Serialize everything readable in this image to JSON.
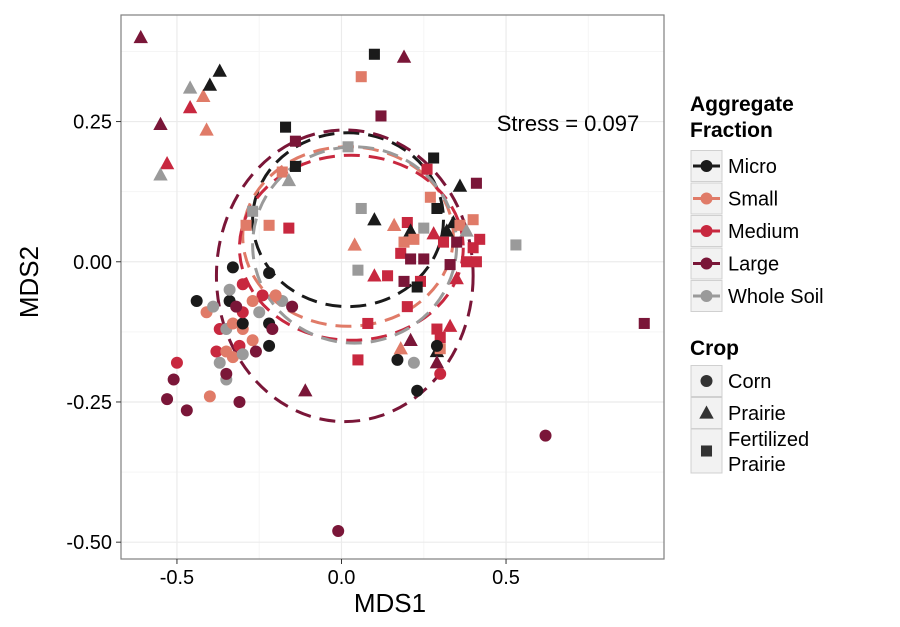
{
  "chart_data": {
    "type": "scatter",
    "xlabel": "MDS1",
    "ylabel": "MDS2",
    "xlim": [
      -0.67,
      0.98
    ],
    "ylim": [
      -0.53,
      0.44
    ],
    "x_ticks": [
      "-0.5",
      "0.0",
      "0.5"
    ],
    "y_ticks": [
      "0.25",
      "0.00",
      "-0.25",
      "-0.50"
    ],
    "grid": true,
    "annotation": "Stress = 0.097",
    "legend_placement": "right",
    "legends": {
      "fraction": {
        "title_line1": "Aggregate",
        "title_line2": "Fraction",
        "items": [
          {
            "label": "Micro",
            "color": "#1a1a1a"
          },
          {
            "label": "Small",
            "color": "#e07b68"
          },
          {
            "label": "Medium",
            "color": "#c8283f"
          },
          {
            "label": "Large",
            "color": "#7a1638"
          },
          {
            "label": "Whole Soil",
            "color": "#9a9a9a"
          }
        ]
      },
      "crop": {
        "title": "Crop",
        "items": [
          {
            "label": "Corn",
            "shape": "circle"
          },
          {
            "label": "Prairie",
            "shape": "triangle"
          },
          {
            "label": "Fertilized",
            "label2": "Prairie",
            "shape": "square"
          }
        ]
      }
    },
    "ellipses": [
      {
        "fraction": "Micro",
        "cx": 0.02,
        "cy": 0.075,
        "rx": 0.29,
        "ry": 0.155
      },
      {
        "fraction": "Small",
        "cx": 0.02,
        "cy": 0.045,
        "rx": 0.32,
        "ry": 0.16
      },
      {
        "fraction": "Medium",
        "cx": 0.03,
        "cy": 0.025,
        "rx": 0.34,
        "ry": 0.165
      },
      {
        "fraction": "Large",
        "cx": 0.01,
        "cy": -0.025,
        "rx": 0.39,
        "ry": 0.26
      },
      {
        "fraction": "Whole Soil",
        "cx": 0.04,
        "cy": 0.03,
        "rx": 0.31,
        "ry": 0.175
      }
    ],
    "points": [
      {
        "x": -0.61,
        "y": 0.4,
        "f": "Large",
        "c": "Prairie"
      },
      {
        "x": -0.55,
        "y": 0.245,
        "f": "Large",
        "c": "Prairie"
      },
      {
        "x": -0.53,
        "y": 0.175,
        "f": "Medium",
        "c": "Prairie"
      },
      {
        "x": -0.55,
        "y": 0.155,
        "f": "Whole Soil",
        "c": "Prairie"
      },
      {
        "x": -0.46,
        "y": 0.275,
        "f": "Medium",
        "c": "Prairie"
      },
      {
        "x": -0.46,
        "y": 0.31,
        "f": "Whole Soil",
        "c": "Prairie"
      },
      {
        "x": -0.42,
        "y": 0.295,
        "f": "Small",
        "c": "Prairie"
      },
      {
        "x": -0.41,
        "y": 0.235,
        "f": "Small",
        "c": "Prairie"
      },
      {
        "x": -0.4,
        "y": 0.315,
        "f": "Micro",
        "c": "Prairie"
      },
      {
        "x": -0.37,
        "y": 0.34,
        "f": "Micro",
        "c": "Prairie"
      },
      {
        "x": 0.1,
        "y": 0.37,
        "f": "Micro",
        "c": "Square"
      },
      {
        "x": 0.19,
        "y": 0.365,
        "f": "Large",
        "c": "Prairie"
      },
      {
        "x": 0.06,
        "y": 0.33,
        "f": "Small",
        "c": "Square"
      },
      {
        "x": 0.12,
        "y": 0.26,
        "f": "Large",
        "c": "Square"
      },
      {
        "x": -0.17,
        "y": 0.24,
        "f": "Micro",
        "c": "Square"
      },
      {
        "x": -0.14,
        "y": 0.215,
        "f": "Large",
        "c": "Square"
      },
      {
        "x": 0.02,
        "y": 0.205,
        "f": "Whole Soil",
        "c": "Square"
      },
      {
        "x": -0.14,
        "y": 0.17,
        "f": "Micro",
        "c": "Square"
      },
      {
        "x": -0.18,
        "y": 0.16,
        "f": "Small",
        "c": "Square"
      },
      {
        "x": -0.16,
        "y": 0.145,
        "f": "Whole Soil",
        "c": "Prairie"
      },
      {
        "x": 0.28,
        "y": 0.185,
        "f": "Micro",
        "c": "Square"
      },
      {
        "x": 0.26,
        "y": 0.165,
        "f": "Medium",
        "c": "Square"
      },
      {
        "x": 0.36,
        "y": 0.135,
        "f": "Micro",
        "c": "Prairie"
      },
      {
        "x": 0.41,
        "y": 0.14,
        "f": "Large",
        "c": "Square"
      },
      {
        "x": 0.27,
        "y": 0.115,
        "f": "Small",
        "c": "Square"
      },
      {
        "x": 0.29,
        "y": 0.095,
        "f": "Micro",
        "c": "Square"
      },
      {
        "x": 0.06,
        "y": 0.095,
        "f": "Whole Soil",
        "c": "Square"
      },
      {
        "x": -0.27,
        "y": 0.09,
        "f": "Whole Soil",
        "c": "Square"
      },
      {
        "x": -0.29,
        "y": 0.065,
        "f": "Small",
        "c": "Square"
      },
      {
        "x": -0.22,
        "y": 0.065,
        "f": "Small",
        "c": "Square"
      },
      {
        "x": -0.16,
        "y": 0.06,
        "f": "Medium",
        "c": "Square"
      },
      {
        "x": 0.1,
        "y": 0.075,
        "f": "Micro",
        "c": "Prairie"
      },
      {
        "x": 0.16,
        "y": 0.065,
        "f": "Small",
        "c": "Prairie"
      },
      {
        "x": 0.2,
        "y": 0.07,
        "f": "Medium",
        "c": "Square"
      },
      {
        "x": 0.21,
        "y": 0.055,
        "f": "Micro",
        "c": "Prairie"
      },
      {
        "x": 0.25,
        "y": 0.06,
        "f": "Whole Soil",
        "c": "Square"
      },
      {
        "x": 0.28,
        "y": 0.05,
        "f": "Medium",
        "c": "Prairie"
      },
      {
        "x": 0.32,
        "y": 0.055,
        "f": "Micro",
        "c": "Prairie"
      },
      {
        "x": 0.34,
        "y": 0.07,
        "f": "Micro",
        "c": "Prairie"
      },
      {
        "x": 0.36,
        "y": 0.065,
        "f": "Small",
        "c": "Square"
      },
      {
        "x": 0.4,
        "y": 0.075,
        "f": "Small",
        "c": "Square"
      },
      {
        "x": 0.38,
        "y": 0.055,
        "f": "Whole Soil",
        "c": "Prairie"
      },
      {
        "x": 0.04,
        "y": 0.03,
        "f": "Small",
        "c": "Prairie"
      },
      {
        "x": 0.19,
        "y": 0.035,
        "f": "Small",
        "c": "Square"
      },
      {
        "x": 0.22,
        "y": 0.04,
        "f": "Small",
        "c": "Square"
      },
      {
        "x": 0.31,
        "y": 0.035,
        "f": "Medium",
        "c": "Square"
      },
      {
        "x": 0.35,
        "y": 0.035,
        "f": "Large",
        "c": "Square"
      },
      {
        "x": 0.4,
        "y": 0.025,
        "f": "Medium",
        "c": "Square"
      },
      {
        "x": 0.42,
        "y": 0.04,
        "f": "Medium",
        "c": "Square"
      },
      {
        "x": 0.18,
        "y": 0.015,
        "f": "Medium",
        "c": "Square"
      },
      {
        "x": 0.21,
        "y": 0.005,
        "f": "Large",
        "c": "Square"
      },
      {
        "x": 0.25,
        "y": 0.005,
        "f": "Large",
        "c": "Square"
      },
      {
        "x": 0.53,
        "y": 0.03,
        "f": "Whole Soil",
        "c": "Square"
      },
      {
        "x": 0.05,
        "y": -0.015,
        "f": "Whole Soil",
        "c": "Square"
      },
      {
        "x": 0.1,
        "y": -0.025,
        "f": "Medium",
        "c": "Prairie"
      },
      {
        "x": 0.14,
        "y": -0.025,
        "f": "Medium",
        "c": "Square"
      },
      {
        "x": 0.19,
        "y": -0.035,
        "f": "Large",
        "c": "Square"
      },
      {
        "x": 0.24,
        "y": -0.035,
        "f": "Medium",
        "c": "Square"
      },
      {
        "x": 0.33,
        "y": -0.005,
        "f": "Large",
        "c": "Square"
      },
      {
        "x": 0.38,
        "y": 0.0,
        "f": "Medium",
        "c": "Square"
      },
      {
        "x": 0.41,
        "y": 0.0,
        "f": "Medium",
        "c": "Square"
      },
      {
        "x": 0.35,
        "y": -0.03,
        "f": "Medium",
        "c": "Prairie"
      },
      {
        "x": 0.23,
        "y": -0.045,
        "f": "Micro",
        "c": "Square"
      },
      {
        "x": 0.92,
        "y": -0.11,
        "f": "Large",
        "c": "Square"
      },
      {
        "x": 0.2,
        "y": -0.08,
        "f": "Medium",
        "c": "Square"
      },
      {
        "x": 0.08,
        "y": -0.11,
        "f": "Medium",
        "c": "Square"
      },
      {
        "x": 0.33,
        "y": -0.115,
        "f": "Medium",
        "c": "Prairie"
      },
      {
        "x": 0.18,
        "y": -0.155,
        "f": "Small",
        "c": "Prairie"
      },
      {
        "x": 0.21,
        "y": -0.14,
        "f": "Large",
        "c": "Prairie"
      },
      {
        "x": 0.29,
        "y": -0.12,
        "f": "Medium",
        "c": "Square"
      },
      {
        "x": 0.3,
        "y": -0.135,
        "f": "Medium",
        "c": "Square"
      },
      {
        "x": 0.29,
        "y": -0.16,
        "f": "Micro",
        "c": "Prairie"
      },
      {
        "x": 0.29,
        "y": -0.18,
        "f": "Large",
        "c": "Prairie"
      },
      {
        "x": 0.3,
        "y": -0.155,
        "f": "Small",
        "c": "Square"
      },
      {
        "x": 0.05,
        "y": -0.175,
        "f": "Medium",
        "c": "Square"
      },
      {
        "x": 0.22,
        "y": -0.18,
        "f": "Whole Soil",
        "c": "Circle"
      },
      {
        "x": 0.17,
        "y": -0.175,
        "f": "Micro",
        "c": "Circle"
      },
      {
        "x": 0.3,
        "y": -0.2,
        "f": "Medium",
        "c": "Circle"
      },
      {
        "x": 0.29,
        "y": -0.15,
        "f": "Micro",
        "c": "Circle"
      },
      {
        "x": 0.23,
        "y": -0.23,
        "f": "Micro",
        "c": "Circle"
      },
      {
        "x": -0.11,
        "y": -0.23,
        "f": "Large",
        "c": "Prairie"
      },
      {
        "x": 0.62,
        "y": -0.31,
        "f": "Large",
        "c": "Circle"
      },
      {
        "x": -0.01,
        "y": -0.48,
        "f": "Large",
        "c": "Circle"
      },
      {
        "x": -0.44,
        "y": -0.07,
        "f": "Micro",
        "c": "Circle"
      },
      {
        "x": -0.41,
        "y": -0.09,
        "f": "Small",
        "c": "Circle"
      },
      {
        "x": -0.39,
        "y": -0.08,
        "f": "Whole Soil",
        "c": "Circle"
      },
      {
        "x": -0.34,
        "y": -0.07,
        "f": "Micro",
        "c": "Circle"
      },
      {
        "x": -0.34,
        "y": -0.05,
        "f": "Whole Soil",
        "c": "Circle"
      },
      {
        "x": -0.33,
        "y": -0.01,
        "f": "Micro",
        "c": "Circle"
      },
      {
        "x": -0.3,
        "y": -0.04,
        "f": "Medium",
        "c": "Circle"
      },
      {
        "x": -0.37,
        "y": -0.12,
        "f": "Medium",
        "c": "Circle"
      },
      {
        "x": -0.35,
        "y": -0.12,
        "f": "Whole Soil",
        "c": "Circle"
      },
      {
        "x": -0.33,
        "y": -0.11,
        "f": "Small",
        "c": "Circle"
      },
      {
        "x": -0.3,
        "y": -0.12,
        "f": "Small",
        "c": "Circle"
      },
      {
        "x": -0.3,
        "y": -0.11,
        "f": "Micro",
        "c": "Circle"
      },
      {
        "x": -0.31,
        "y": -0.15,
        "f": "Medium",
        "c": "Circle"
      },
      {
        "x": -0.27,
        "y": -0.14,
        "f": "Small",
        "c": "Circle"
      },
      {
        "x": -0.38,
        "y": -0.16,
        "f": "Medium",
        "c": "Circle"
      },
      {
        "x": -0.35,
        "y": -0.16,
        "f": "Small",
        "c": "Circle"
      },
      {
        "x": -0.33,
        "y": -0.17,
        "f": "Small",
        "c": "Circle"
      },
      {
        "x": -0.3,
        "y": -0.165,
        "f": "Whole Soil",
        "c": "Circle"
      },
      {
        "x": -0.26,
        "y": -0.16,
        "f": "Large",
        "c": "Circle"
      },
      {
        "x": -0.22,
        "y": -0.15,
        "f": "Micro",
        "c": "Circle"
      },
      {
        "x": -0.37,
        "y": -0.18,
        "f": "Whole Soil",
        "c": "Circle"
      },
      {
        "x": -0.35,
        "y": -0.21,
        "f": "Whole Soil",
        "c": "Circle"
      },
      {
        "x": -0.35,
        "y": -0.2,
        "f": "Large",
        "c": "Circle"
      },
      {
        "x": -0.5,
        "y": -0.18,
        "f": "Medium",
        "c": "Circle"
      },
      {
        "x": -0.51,
        "y": -0.21,
        "f": "Large",
        "c": "Circle"
      },
      {
        "x": -0.53,
        "y": -0.245,
        "f": "Large",
        "c": "Circle"
      },
      {
        "x": -0.47,
        "y": -0.265,
        "f": "Large",
        "c": "Circle"
      },
      {
        "x": -0.4,
        "y": -0.24,
        "f": "Small",
        "c": "Circle"
      },
      {
        "x": -0.31,
        "y": -0.25,
        "f": "Large",
        "c": "Circle"
      },
      {
        "x": -0.22,
        "y": -0.11,
        "f": "Micro",
        "c": "Circle"
      },
      {
        "x": -0.21,
        "y": -0.12,
        "f": "Large",
        "c": "Circle"
      },
      {
        "x": -0.18,
        "y": -0.07,
        "f": "Whole Soil",
        "c": "Circle"
      },
      {
        "x": -0.24,
        "y": -0.06,
        "f": "Medium",
        "c": "Circle"
      },
      {
        "x": -0.15,
        "y": -0.08,
        "f": "Large",
        "c": "Circle"
      },
      {
        "x": -0.22,
        "y": -0.02,
        "f": "Micro",
        "c": "Circle"
      },
      {
        "x": -0.2,
        "y": -0.06,
        "f": "Small",
        "c": "Circle"
      },
      {
        "x": -0.25,
        "y": -0.09,
        "f": "Whole Soil",
        "c": "Circle"
      },
      {
        "x": -0.27,
        "y": -0.07,
        "f": "Small",
        "c": "Circle"
      },
      {
        "x": -0.3,
        "y": -0.09,
        "f": "Medium",
        "c": "Circle"
      },
      {
        "x": -0.32,
        "y": -0.08,
        "f": "Large",
        "c": "Circle"
      }
    ]
  }
}
